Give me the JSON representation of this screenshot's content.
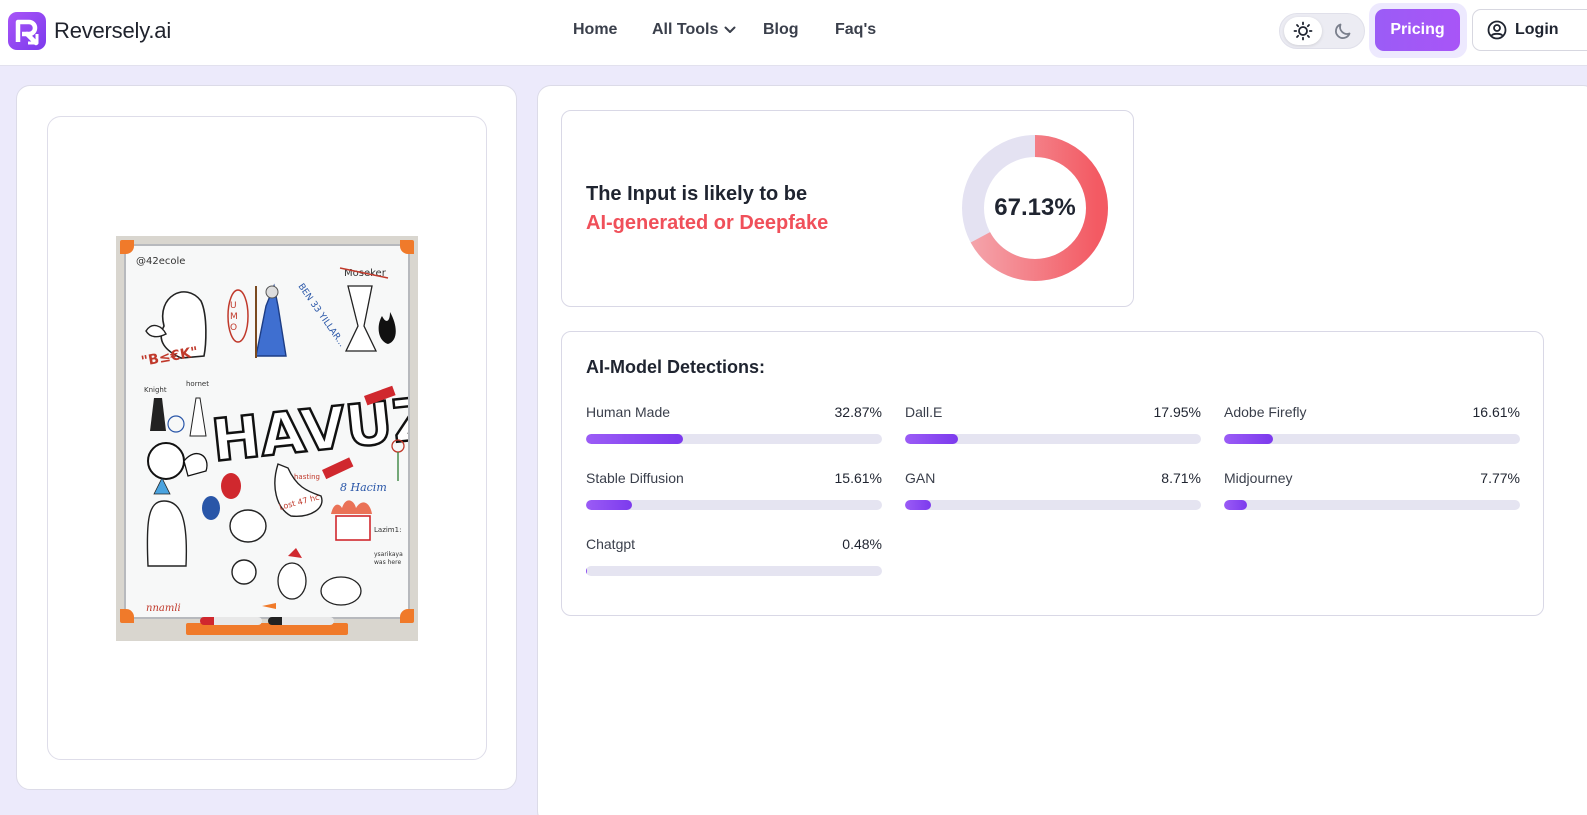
{
  "brand": {
    "name": "Reversely.ai",
    "accent": "#9b5cf6"
  },
  "nav": {
    "home": "Home",
    "all_tools": "All Tools",
    "blog": "Blog",
    "faqs": "Faq's"
  },
  "header": {
    "pricing_label": "Pricing",
    "login_label": "Login"
  },
  "result": {
    "line1": "The Input is likely to be",
    "line2": "AI-generated or Deepfake",
    "score_label": "67.13%",
    "score_value": 67.13,
    "alert_color": "#f0505a"
  },
  "detections": {
    "title": "AI-Model Detections:",
    "items": [
      {
        "name": "Human Made",
        "value_label": "32.87%",
        "value": 32.87
      },
      {
        "name": "Dall.E",
        "value_label": "17.95%",
        "value": 17.95
      },
      {
        "name": "Adobe Firefly",
        "value_label": "16.61%",
        "value": 16.61
      },
      {
        "name": "Stable Diffusion",
        "value_label": "15.61%",
        "value": 15.61
      },
      {
        "name": "GAN",
        "value_label": "8.71%",
        "value": 8.71
      },
      {
        "name": "Midjourney",
        "value_label": "7.77%",
        "value": 7.77
      },
      {
        "name": "Chatgpt",
        "value_label": "0.48%",
        "value": 0.48
      }
    ]
  },
  "uploaded_image": {
    "caption_texts": [
      "@42ecole",
      "HAVUZ",
      "Moseker",
      "BEN 33 YILLAR...",
      "UMO",
      "Knight",
      "hornet",
      "8 Hacim",
      "Lost 47 hc",
      "hasting",
      "Lazim1:",
      "ysarikaya was here",
      "nnamli"
    ]
  }
}
